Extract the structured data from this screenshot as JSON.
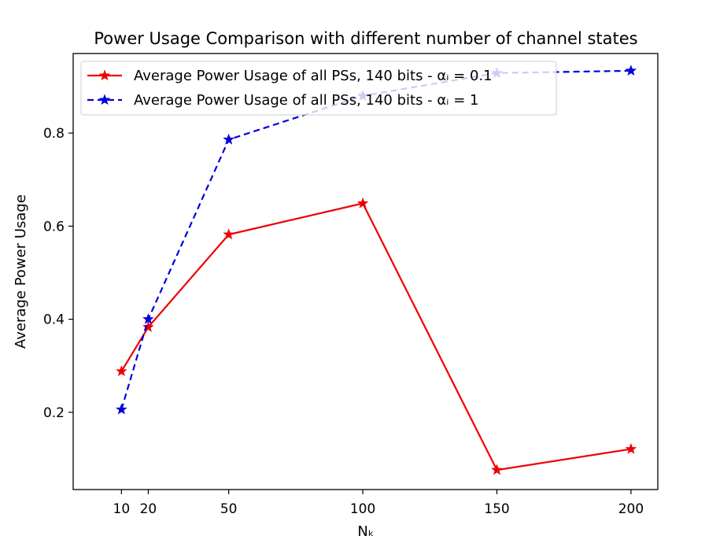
{
  "chart_data": {
    "type": "line",
    "title": "Power Usage Comparison with different number of channel states",
    "xlabel": "Nₖ",
    "ylabel": "Average Power Usage",
    "x": [
      10,
      20,
      50,
      100,
      150,
      200
    ],
    "xticks": [
      "10",
      "20",
      "50",
      "100",
      "150",
      "200"
    ],
    "yticks": [
      "0.2",
      "0.4",
      "0.6",
      "0.8"
    ],
    "xlim": [
      -8,
      210
    ],
    "ylim": [
      0.034,
      0.971
    ],
    "grid": false,
    "legend_position": "top-left",
    "series": [
      {
        "name": "Average Power Usage of all PSs, 140 bits - αᵢ = 0.1",
        "values": [
          0.288,
          0.383,
          0.582,
          0.649,
          0.076,
          0.121
        ],
        "color": "#ee0000",
        "line_style": "solid",
        "marker": "star"
      },
      {
        "name": "Average Power Usage of all PSs, 140 bits - αᵢ = 1",
        "values": [
          0.206,
          0.4,
          0.786,
          0.88,
          0.929,
          0.934
        ],
        "color": "#0000dd",
        "line_style": "dashed",
        "marker": "star"
      }
    ]
  }
}
